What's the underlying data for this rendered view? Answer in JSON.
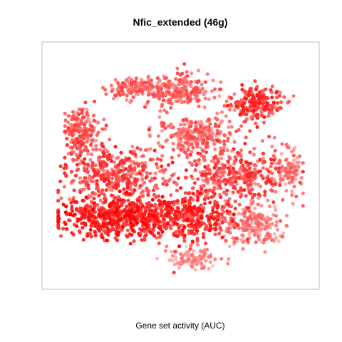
{
  "chart_data": {
    "type": "scatter",
    "title": "Nfic_extended (46g)",
    "xlabel": "Gene set activity (AUC)",
    "ylabel": "",
    "grid": false,
    "legend": "none",
    "axis_ticks": false,
    "color_scale": {
      "low": "#fde0dd",
      "high": "#ff0000",
      "meaning": "Gene set activity (AUC)"
    },
    "clusters": [
      {
        "id": "top-center",
        "center": [
          0.49,
          0.83
        ],
        "spread": [
          0.09,
          0.05
        ],
        "n": 220,
        "intensity": [
          0.25,
          0.7
        ]
      },
      {
        "id": "upper-left-small",
        "center": [
          0.3,
          0.84
        ],
        "spread": [
          0.06,
          0.03
        ],
        "n": 110,
        "intensity": [
          0.3,
          0.7
        ]
      },
      {
        "id": "upper-right",
        "center": [
          0.79,
          0.77
        ],
        "spread": [
          0.07,
          0.05
        ],
        "n": 200,
        "intensity": [
          0.4,
          0.9
        ]
      },
      {
        "id": "mid-center",
        "center": [
          0.56,
          0.64
        ],
        "spread": [
          0.1,
          0.05
        ],
        "n": 240,
        "intensity": [
          0.25,
          0.7
        ]
      },
      {
        "id": "left-upper",
        "center": [
          0.11,
          0.65
        ],
        "spread": [
          0.05,
          0.07
        ],
        "n": 170,
        "intensity": [
          0.3,
          0.75
        ]
      },
      {
        "id": "mid-left",
        "center": [
          0.24,
          0.46
        ],
        "spread": [
          0.13,
          0.08
        ],
        "n": 380,
        "intensity": [
          0.35,
          0.85
        ]
      },
      {
        "id": "mid-right",
        "center": [
          0.72,
          0.46
        ],
        "spread": [
          0.15,
          0.08
        ],
        "n": 380,
        "intensity": [
          0.35,
          0.85
        ]
      },
      {
        "id": "far-right",
        "center": [
          0.92,
          0.49
        ],
        "spread": [
          0.03,
          0.06
        ],
        "n": 80,
        "intensity": [
          0.2,
          0.6
        ]
      },
      {
        "id": "bottom-left-dense",
        "center": [
          0.25,
          0.27
        ],
        "spread": [
          0.15,
          0.06
        ],
        "n": 520,
        "intensity": [
          0.6,
          1.0
        ]
      },
      {
        "id": "bottom-center",
        "center": [
          0.53,
          0.28
        ],
        "spread": [
          0.13,
          0.07
        ],
        "n": 360,
        "intensity": [
          0.5,
          0.95
        ]
      },
      {
        "id": "bottom-right",
        "center": [
          0.79,
          0.24
        ],
        "spread": [
          0.08,
          0.06
        ],
        "n": 200,
        "intensity": [
          0.15,
          0.6
        ]
      },
      {
        "id": "bottom-low",
        "center": [
          0.55,
          0.09
        ],
        "spread": [
          0.07,
          0.03
        ],
        "n": 110,
        "intensity": [
          0.05,
          0.5
        ]
      }
    ]
  }
}
